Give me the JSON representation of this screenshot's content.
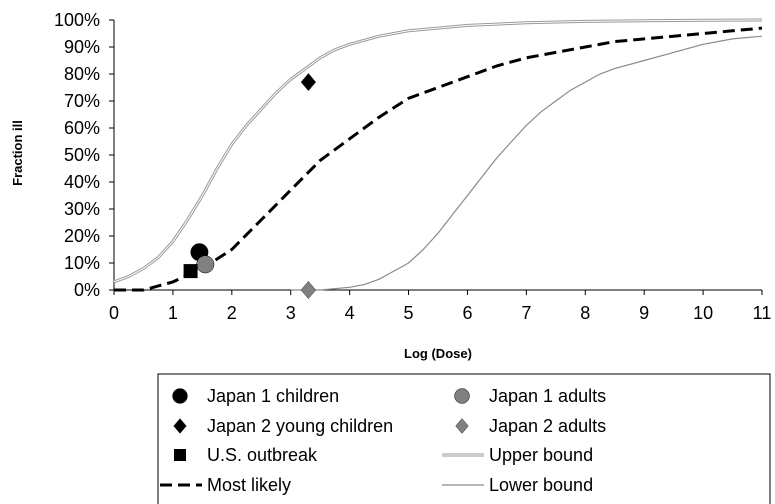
{
  "chart_data": {
    "type": "scatter",
    "title": "",
    "xlabel": "Log (Dose)",
    "ylabel": "Fraction ill",
    "xlim": [
      0,
      11
    ],
    "ylim": [
      0,
      1
    ],
    "x_ticks": [
      "0",
      "1",
      "2",
      "3",
      "4",
      "5",
      "6",
      "7",
      "8",
      "9",
      "10",
      "11"
    ],
    "y_ticks": [
      "0%",
      "10%",
      "20%",
      "30%",
      "40%",
      "50%",
      "60%",
      "70%",
      "80%",
      "90%",
      "100%"
    ],
    "grid": false,
    "legend_position": "bottom",
    "points": [
      {
        "name": "Japan 1 children",
        "marker": "circle",
        "color": "#000000",
        "x": 1.45,
        "y": 0.14
      },
      {
        "name": "Japan 1 adults",
        "marker": "circle",
        "color": "#808080",
        "x": 1.55,
        "y": 0.095
      },
      {
        "name": "Japan 2 young children",
        "marker": "diamond",
        "color": "#000000",
        "x": 3.3,
        "y": 0.77
      },
      {
        "name": "Japan 2 adults",
        "marker": "diamond",
        "color": "#808080",
        "x": 3.3,
        "y": 0.0
      },
      {
        "name": "U.S. outbreak",
        "marker": "square",
        "color": "#000000",
        "x": 1.3,
        "y": 0.07
      }
    ],
    "series": [
      {
        "name": "Upper bound",
        "style": "double-thin",
        "color": "#9a9a9a",
        "x": [
          0,
          0.25,
          0.5,
          0.75,
          1.0,
          1.25,
          1.5,
          1.75,
          2.0,
          2.25,
          2.5,
          2.75,
          3.0,
          3.25,
          3.5,
          3.75,
          4.0,
          4.5,
          5.0,
          5.5,
          6.0,
          6.5,
          7.0,
          8.0,
          9.0,
          10.0,
          11.0
        ],
        "y": [
          0.03,
          0.05,
          0.08,
          0.12,
          0.18,
          0.26,
          0.35,
          0.45,
          0.54,
          0.61,
          0.67,
          0.73,
          0.78,
          0.82,
          0.86,
          0.89,
          0.91,
          0.94,
          0.96,
          0.97,
          0.98,
          0.985,
          0.99,
          0.995,
          0.997,
          0.999,
          1.0
        ]
      },
      {
        "name": "Lower bound",
        "style": "thin",
        "color": "#8a8a8a",
        "x": [
          3.0,
          3.5,
          4.0,
          4.25,
          4.5,
          4.75,
          5.0,
          5.25,
          5.5,
          5.75,
          6.0,
          6.25,
          6.5,
          6.75,
          7.0,
          7.25,
          7.5,
          7.75,
          8.0,
          8.25,
          8.5,
          9.0,
          9.5,
          10.0,
          10.5,
          11.0
        ],
        "y": [
          0.0,
          0.0,
          0.01,
          0.02,
          0.04,
          0.07,
          0.1,
          0.15,
          0.21,
          0.28,
          0.35,
          0.42,
          0.49,
          0.55,
          0.61,
          0.66,
          0.7,
          0.74,
          0.77,
          0.8,
          0.82,
          0.85,
          0.88,
          0.91,
          0.93,
          0.94
        ]
      },
      {
        "name": "Most likely",
        "style": "dashed",
        "color": "#000000",
        "x": [
          0,
          0.5,
          1.0,
          1.5,
          2.0,
          2.5,
          3.0,
          3.5,
          4.0,
          4.5,
          5.0,
          5.5,
          6.0,
          6.5,
          7.0,
          7.5,
          8.0,
          8.5,
          9.0,
          9.5,
          10.0,
          10.5,
          11.0
        ],
        "y": [
          0.0,
          0.0,
          0.03,
          0.08,
          0.15,
          0.26,
          0.37,
          0.48,
          0.56,
          0.64,
          0.71,
          0.75,
          0.79,
          0.83,
          0.86,
          0.88,
          0.9,
          0.92,
          0.93,
          0.94,
          0.95,
          0.96,
          0.97
        ]
      }
    ],
    "legend": [
      {
        "name": "Japan 1 children",
        "marker": "circle",
        "color": "#000000"
      },
      {
        "name": "Japan 1 adults",
        "marker": "circle",
        "color": "#808080"
      },
      {
        "name": "Japan 2 young children",
        "marker": "diamond",
        "color": "#000000"
      },
      {
        "name": "Japan 2 adults",
        "marker": "diamond",
        "color": "#808080"
      },
      {
        "name": "U.S. outbreak",
        "marker": "square",
        "color": "#000000"
      },
      {
        "name": "Upper bound",
        "marker": "double-line",
        "color": "#9a9a9a"
      },
      {
        "name": "Most likely",
        "marker": "dash-line",
        "color": "#000000"
      },
      {
        "name": "Lower bound",
        "marker": "line",
        "color": "#8a8a8a"
      }
    ]
  }
}
